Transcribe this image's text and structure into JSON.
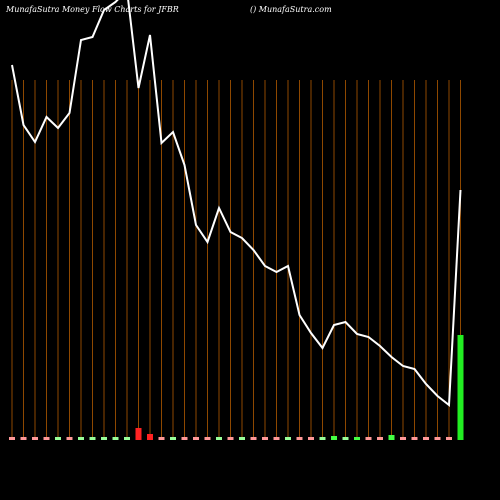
{
  "chart_data": {
    "type": "line",
    "title": "MunafaSutra  Money Flow  Charts for JFBR",
    "subtitle": "() MunafaSutra.com",
    "x": [
      0,
      1,
      2,
      3,
      4,
      5,
      6,
      7,
      8,
      9,
      10,
      11,
      12,
      13,
      14,
      15,
      16,
      17,
      18,
      19,
      20,
      21,
      22,
      23,
      24,
      25,
      26,
      27,
      28,
      29,
      30,
      31,
      32,
      33,
      34,
      35,
      36,
      37,
      38,
      39
    ],
    "xlim": [
      0,
      39
    ],
    "ylim": [
      0,
      440
    ],
    "color": "#ffffff",
    "grid_color": "#b35a00",
    "values": [
      375,
      315,
      298,
      323,
      312,
      327,
      400,
      403,
      430,
      438,
      450,
      352,
      405,
      297,
      308,
      275,
      215,
      198,
      232,
      208,
      202,
      190,
      174,
      168,
      174,
      125,
      107,
      92,
      115,
      118,
      106,
      103,
      94,
      83,
      74,
      71,
      56,
      44,
      35,
      250
    ],
    "bars": {
      "ylim": [
        0,
        110
      ],
      "values": [
        3,
        3,
        3,
        3,
        3,
        3,
        3,
        3,
        3,
        3,
        3,
        12,
        6,
        3,
        3,
        3,
        3,
        3,
        3,
        3,
        3,
        3,
        3,
        3,
        3,
        3,
        3,
        3,
        4,
        3,
        3,
        3,
        3,
        5,
        3,
        3,
        3,
        3,
        3,
        105
      ],
      "colors": [
        "#ff9999",
        "#ff9999",
        "#ff9999",
        "#ff9999",
        "#99ff99",
        "#ff9999",
        "#99ff99",
        "#99ff99",
        "#99ff99",
        "#99ff99",
        "#99ff99",
        "#ff2222",
        "#ff2222",
        "#ff9999",
        "#99ff99",
        "#ff9999",
        "#ff9999",
        "#ff9999",
        "#99ff99",
        "#ff9999",
        "#99ff99",
        "#ff9999",
        "#ff9999",
        "#ff9999",
        "#99ff99",
        "#ff9999",
        "#ff9999",
        "#99ff99",
        "#44ff44",
        "#99ff99",
        "#44ff44",
        "#ff9999",
        "#ff9999",
        "#44ff44",
        "#ff9999",
        "#ff9999",
        "#ff9999",
        "#ff9999",
        "#ff9999",
        "#22ee22"
      ]
    }
  }
}
